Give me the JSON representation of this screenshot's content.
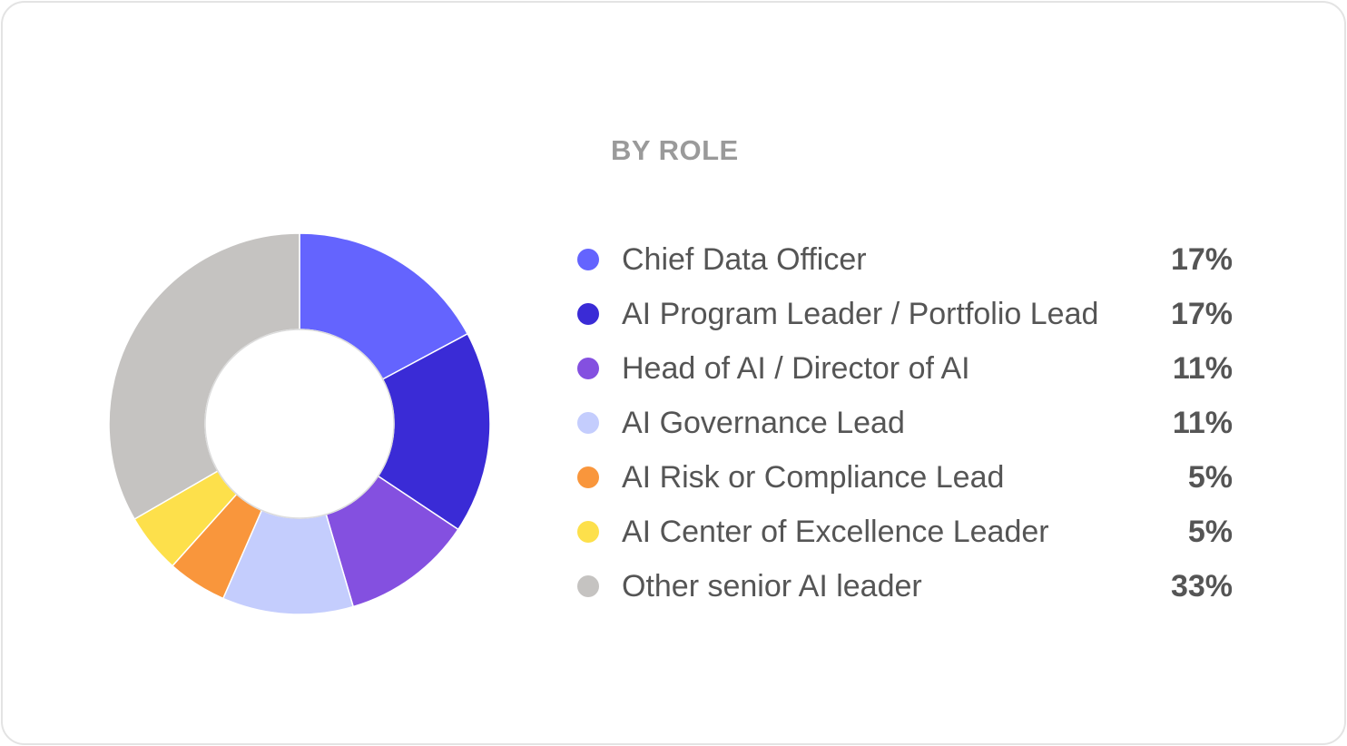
{
  "chart_data": {
    "type": "pie",
    "title": "BY ROLE",
    "categories": [
      "Chief Data Officer",
      "AI Program Leader / Portfolio Lead",
      "Head of AI / Director of AI",
      "AI Governance Lead",
      "AI Risk or Compliance Lead",
      "AI Center of Excellence Leader",
      "Other senior AI leader"
    ],
    "values": [
      17,
      17,
      11,
      11,
      5,
      5,
      33
    ],
    "value_labels": [
      "17%",
      "17%",
      "11%",
      "11%",
      "5%",
      "5%",
      "33%"
    ],
    "colors": [
      "#6464fe",
      "#3a2bd6",
      "#8450e0",
      "#c4cdfd",
      "#f9963c",
      "#fde04b",
      "#c5c3c1"
    ],
    "donut": true,
    "legend_position": "right"
  }
}
